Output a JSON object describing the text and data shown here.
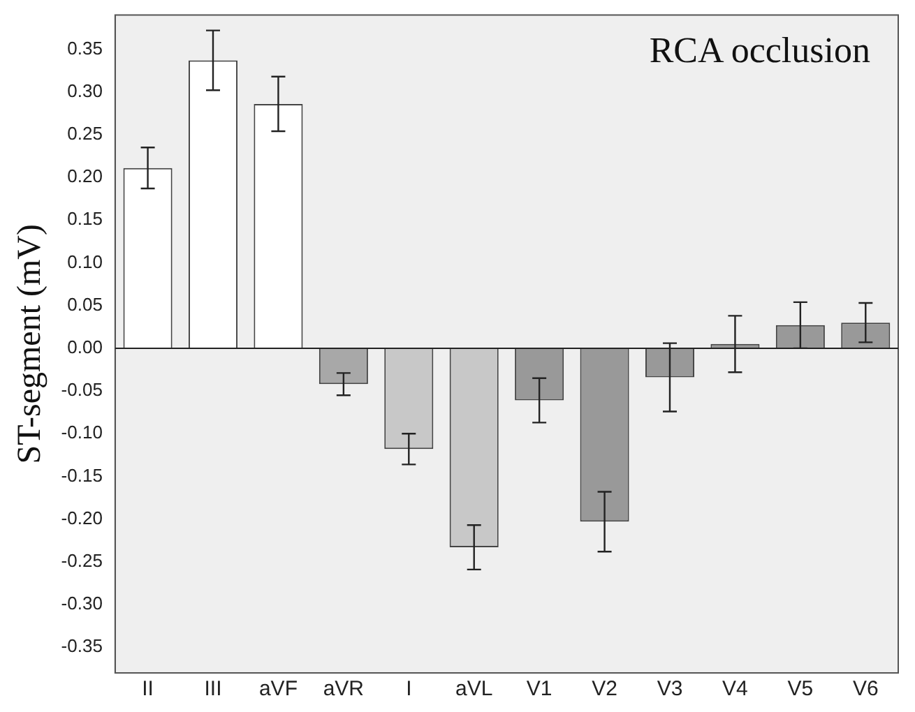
{
  "chart_data": {
    "type": "bar",
    "title": "RCA occlusion",
    "ylabel": "ST-segment (mV)",
    "categories": [
      "II",
      "III",
      "aVF",
      "aVR",
      "I",
      "aVL",
      "V1",
      "V2",
      "V3",
      "V4",
      "V5",
      "V6"
    ],
    "values": [
      0.211,
      0.337,
      0.286,
      -0.042,
      -0.118,
      -0.233,
      -0.061,
      -0.203,
      -0.034,
      0.005,
      0.027,
      0.03
    ],
    "errors": [
      0.024,
      0.035,
      0.032,
      0.013,
      0.018,
      0.026,
      0.026,
      0.035,
      0.04,
      0.033,
      0.027,
      0.023
    ],
    "colors": [
      "#ffffff",
      "#ffffff",
      "#ffffff",
      "#a8a8a8",
      "#c8c8c8",
      "#c8c8c8",
      "#999999",
      "#999999",
      "#999999",
      "#999999",
      "#999999",
      "#999999"
    ],
    "ylim": [
      -0.38,
      0.39
    ],
    "yticks": [
      {
        "value": -0.35,
        "label": "-0.35"
      },
      {
        "value": -0.3,
        "label": "-0.30"
      },
      {
        "value": -0.25,
        "label": "-0.25"
      },
      {
        "value": -0.2,
        "label": "-0.20"
      },
      {
        "value": -0.15,
        "label": "-0.15"
      },
      {
        "value": -0.1,
        "label": "-0.10"
      },
      {
        "value": -0.05,
        "label": "-0.05"
      },
      {
        "value": 0,
        "label": "0.00"
      },
      {
        "value": 0.05,
        "label": "0.05"
      },
      {
        "value": 0.1,
        "label": "0.10"
      },
      {
        "value": 0.15,
        "label": "0.15"
      },
      {
        "value": 0.2,
        "label": "0.20"
      },
      {
        "value": 0.25,
        "label": "0.25"
      },
      {
        "value": 0.3,
        "label": "0.30"
      },
      {
        "value": 0.35,
        "label": "0.35"
      }
    ],
    "ref_lines": [
      {
        "axis": "y",
        "value": 0,
        "color": "#222222"
      }
    ],
    "grid": false,
    "legend": false
  }
}
